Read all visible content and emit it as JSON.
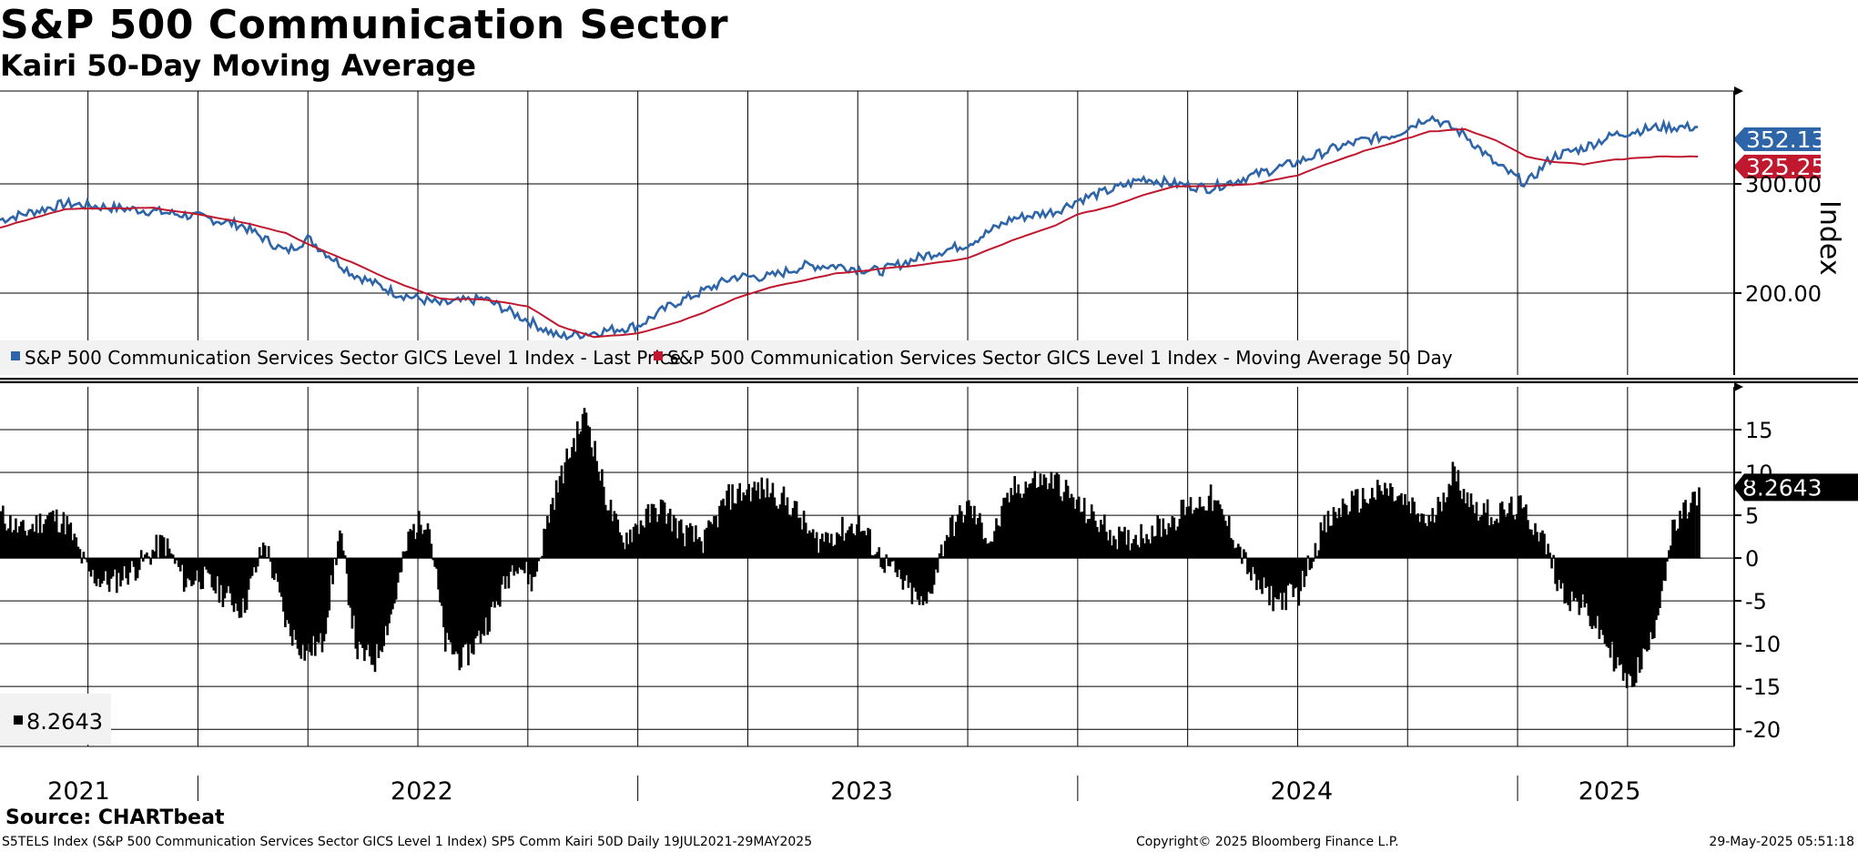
{
  "title": "S&P 500 Communication Sector",
  "subtitle": "Kairi 50-Day Moving Average",
  "source": "Source: CHARTbeat",
  "footer": {
    "left": "S5TELS Index (S&P 500 Communication Services Sector GICS Level 1 Index) SP5 Comm Kairi 50D  Daily 19JUL2021-29MAY2025",
    "center": "Copyright© 2025 Bloomberg Finance L.P.",
    "right": "29-May-2025 05:51:18"
  },
  "colors": {
    "price": "#2e64a8",
    "ma": "#c0182f",
    "bar": "#000000",
    "grid": "#000000"
  },
  "chart_data": [
    {
      "type": "line",
      "title": "S&P 500 Communication Services Sector GICS Level 1 Index",
      "ylabel": "Index",
      "ylim": [
        125,
        385
      ],
      "yticks": [
        200,
        300
      ],
      "ytick_labels": [
        "200.00",
        "300.00"
      ],
      "x": [
        2021.55,
        2021.7,
        2021.9,
        2022.0,
        2022.1,
        2022.2,
        2022.25,
        2022.35,
        2022.45,
        2022.55,
        2022.65,
        2022.75,
        2022.82,
        2022.9,
        2023.0,
        2023.08,
        2023.15,
        2023.22,
        2023.3,
        2023.38,
        2023.45,
        2023.55,
        2023.65,
        2023.75,
        2023.85,
        2023.95,
        2024.0,
        2024.08,
        2024.15,
        2024.22,
        2024.3,
        2024.4,
        2024.5,
        2024.58,
        2024.65,
        2024.72,
        2024.8,
        2024.88,
        2024.95,
        2025.02,
        2025.08,
        2025.15,
        2025.22,
        2025.32,
        2025.41
      ],
      "series": [
        {
          "name": "S&P 500 Communication Services Sector GICS Level 1 Index - Last Price",
          "values": [
            267,
            282,
            275,
            270,
            262,
            238,
            250,
            218,
            200,
            190,
            195,
            175,
            160,
            164,
            170,
            190,
            202,
            215,
            215,
            225,
            225,
            220,
            234,
            245,
            268,
            275,
            285,
            295,
            305,
            300,
            296,
            308,
            320,
            332,
            340,
            345,
            362,
            345,
            318,
            300,
            325,
            333,
            345,
            352,
            352
          ]
        },
        {
          "name": "S&P 500 Communication Services Sector GICS Level 1 Index - Moving Average 50 Day",
          "values": [
            260,
            277,
            278,
            272,
            265,
            255,
            245,
            228,
            210,
            195,
            194,
            188,
            170,
            160,
            163,
            172,
            182,
            195,
            205,
            212,
            218,
            222,
            226,
            232,
            248,
            262,
            272,
            280,
            290,
            298,
            298,
            300,
            308,
            320,
            330,
            338,
            348,
            350,
            340,
            325,
            320,
            318,
            322,
            325,
            325
          ]
        }
      ],
      "last_values": [
        {
          "series": "Last Price",
          "label": "352.13"
        },
        {
          "series": "Moving Average 50 Day",
          "label": "325.25"
        }
      ],
      "legend": "bottom-left"
    },
    {
      "type": "bar",
      "title": "SP5 Comm Kairi 50D",
      "ylim": [
        -22,
        20
      ],
      "yticks": [
        -20,
        -15,
        -10,
        -5,
        0,
        5,
        10,
        15
      ],
      "ytick_labels": [
        "-20",
        "-15",
        "-10",
        "-5",
        "0",
        "5",
        "10",
        "15"
      ],
      "x": [
        2021.55,
        2021.6,
        2021.66,
        2021.7,
        2021.75,
        2021.8,
        2021.86,
        2021.92,
        2021.97,
        2022.0,
        2022.05,
        2022.1,
        2022.15,
        2022.2,
        2022.24,
        2022.28,
        2022.32,
        2022.36,
        2022.4,
        2022.44,
        2022.48,
        2022.52,
        2022.56,
        2022.6,
        2022.64,
        2022.68,
        2022.72,
        2022.76,
        2022.8,
        2022.84,
        2022.88,
        2022.92,
        2022.96,
        2023.0,
        2023.05,
        2023.1,
        2023.15,
        2023.2,
        2023.25,
        2023.3,
        2023.35,
        2023.4,
        2023.45,
        2023.5,
        2023.55,
        2023.6,
        2023.65,
        2023.7,
        2023.75,
        2023.8,
        2023.85,
        2023.9,
        2023.95,
        2024.0,
        2024.05,
        2024.1,
        2024.15,
        2024.2,
        2024.25,
        2024.3,
        2024.35,
        2024.4,
        2024.45,
        2024.5,
        2024.55,
        2024.6,
        2024.65,
        2024.7,
        2024.75,
        2024.8,
        2024.85,
        2024.9,
        2024.95,
        2025.0,
        2025.05,
        2025.1,
        2025.15,
        2025.2,
        2025.25,
        2025.3,
        2025.35,
        2025.4,
        2025.41
      ],
      "values": [
        5,
        3,
        5,
        4,
        -2,
        -3,
        -1,
        2,
        -3,
        -2,
        -4,
        -6,
        2,
        -8,
        -11,
        -10,
        3,
        -11,
        -12,
        -6,
        3,
        5,
        -10,
        -12,
        -9,
        -5,
        0,
        -3,
        6,
        12,
        17,
        8,
        2,
        4,
        6,
        3,
        2,
        7,
        8,
        8,
        6,
        2,
        3,
        4,
        0,
        -3,
        -6,
        3,
        6,
        2,
        8,
        9,
        9,
        6,
        4,
        2,
        3,
        4,
        6,
        7,
        3,
        -3,
        -5,
        -4,
        3,
        6,
        7,
        8,
        6,
        4,
        10,
        6,
        5,
        6,
        3,
        -4,
        -6,
        -10,
        -15,
        -10,
        3,
        7,
        8.2643
      ],
      "last_value_label": "8.2643",
      "legend": "bottom-left"
    }
  ],
  "x_axis": {
    "years": [
      "2021",
      "2022",
      "2023",
      "2024",
      "2025"
    ]
  }
}
